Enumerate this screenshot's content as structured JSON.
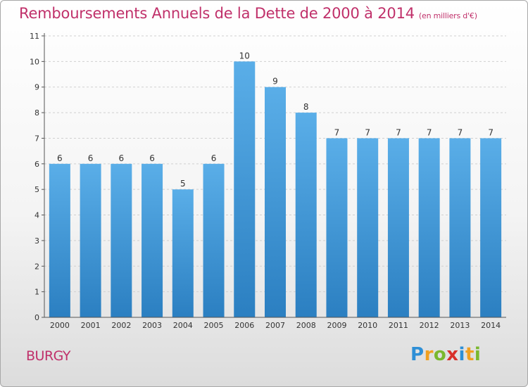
{
  "title": "Remboursements Annuels de la Dette de 2000 à 2014",
  "unit": "(en milliers d'€)",
  "place": "BURGY",
  "logo": {
    "letters": [
      "P",
      "r",
      "o",
      "x",
      "i",
      "t",
      "i"
    ],
    "colors": [
      "#2e8fd6",
      "#f0a020",
      "#7ab82e",
      "#d8302a",
      "#2e8fd6",
      "#f0a020",
      "#7ab82e"
    ]
  },
  "chart_data": {
    "type": "bar",
    "categories": [
      "2000",
      "2001",
      "2002",
      "2003",
      "2004",
      "2005",
      "2006",
      "2007",
      "2008",
      "2009",
      "2010",
      "2011",
      "2012",
      "2013",
      "2014"
    ],
    "values": [
      6,
      6,
      6,
      6,
      5,
      6,
      10,
      9,
      8,
      7,
      7,
      7,
      7,
      7,
      7
    ],
    "data_labels": [
      "6",
      "6",
      "6",
      "6",
      "5",
      "6",
      "10",
      "9",
      "8",
      "7",
      "7",
      "7",
      "7",
      "7",
      "7"
    ],
    "y_ticks": [
      "0",
      "1",
      "2",
      "3",
      "4",
      "5",
      "6",
      "7",
      "8",
      "9",
      "10",
      "11"
    ],
    "title": "Remboursements Annuels de la Dette de 2000 à 2014",
    "xlabel": "",
    "ylabel": "",
    "ylim": [
      0,
      11
    ],
    "grid": true,
    "bar_color_top": "#5aaee8",
    "bar_color_bottom": "#2b7fc1"
  }
}
